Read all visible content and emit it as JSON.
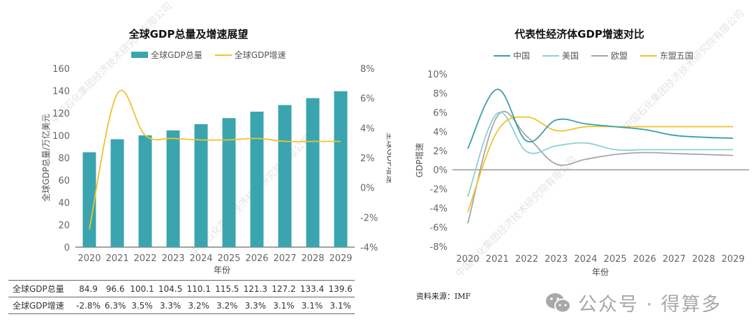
{
  "watermark_text": "中国石化集团经济技术研究院有限公司",
  "source_label": "资料来源：IMF",
  "wechat_badge": {
    "icon": "wechat-icon",
    "text": "公众号 · 得算多"
  },
  "left_table": {
    "rows": [
      {
        "label": "全球GDP总量",
        "values": [
          "84.9",
          "96.6",
          "100.1",
          "104.5",
          "110.1",
          "115.5",
          "121.3",
          "127.2",
          "133.4",
          "139.6"
        ]
      },
      {
        "label": "全球GDP增速",
        "values": [
          "-2.8%",
          "6.3%",
          "3.5%",
          "3.3%",
          "3.2%",
          "3.2%",
          "3.3%",
          "3.1%",
          "3.1%",
          "3.1%"
        ]
      }
    ]
  },
  "chart_data": [
    {
      "type": "bar",
      "title": "全球GDP总量及增速展望",
      "categories": [
        "2020",
        "2021",
        "2022",
        "2023",
        "2024",
        "2025",
        "2026",
        "2027",
        "2028",
        "2029"
      ],
      "xlabel": "年份",
      "ylabel": "全球GDP总量/万亿美元",
      "y2label": "全球GDP增速",
      "ylim": [
        0,
        160
      ],
      "yticks": [
        0,
        20,
        40,
        60,
        80,
        100,
        120,
        140,
        160
      ],
      "y2lim": [
        -4,
        8
      ],
      "y2ticks": [
        "-4%",
        "-2%",
        "0%",
        "2%",
        "4%",
        "6%",
        "8%"
      ],
      "legend_position": "top-center",
      "grid": false,
      "colors": {
        "bar": "#3aa5ae",
        "line": "#f0c22e"
      },
      "series": [
        {
          "name": "全球GDP总量",
          "kind": "bar",
          "axis": "left",
          "values": [
            84.9,
            96.6,
            100.1,
            104.5,
            110.1,
            115.5,
            121.3,
            127.2,
            133.4,
            139.6
          ]
        },
        {
          "name": "全球GDP增速",
          "kind": "line",
          "axis": "right",
          "values": [
            -2.8,
            6.3,
            3.5,
            3.3,
            3.2,
            3.2,
            3.3,
            3.1,
            3.1,
            3.1
          ]
        }
      ]
    },
    {
      "type": "line",
      "title": "代表性经济体GDP增速对比",
      "categories": [
        "2020",
        "2021",
        "2022",
        "2023",
        "2024",
        "2025",
        "2026",
        "2027",
        "2028",
        "2029"
      ],
      "xlabel": "年份",
      "ylabel": "GDP增速",
      "ylim": [
        -8,
        10
      ],
      "yticks": [
        "-8%",
        "-6%",
        "-4%",
        "-2%",
        "0%",
        "2%",
        "4%",
        "6%",
        "8%",
        "10%"
      ],
      "legend_position": "top-center",
      "grid": false,
      "series": [
        {
          "name": "中国",
          "color": "#3a9ea6",
          "values": [
            2.2,
            8.4,
            3.0,
            5.2,
            4.8,
            4.5,
            4.2,
            3.6,
            3.4,
            3.3
          ]
        },
        {
          "name": "美国",
          "color": "#8fd0d0",
          "values": [
            -2.8,
            5.9,
            1.9,
            2.5,
            2.8,
            2.1,
            2.1,
            2.1,
            2.1,
            2.1
          ]
        },
        {
          "name": "欧盟",
          "color": "#a6a6a6",
          "values": [
            -5.6,
            5.6,
            3.5,
            0.6,
            1.1,
            1.6,
            1.8,
            1.7,
            1.6,
            1.5
          ]
        },
        {
          "name": "东盟五国",
          "color": "#f0c22e",
          "values": [
            -4.4,
            4.0,
            5.5,
            4.1,
            4.5,
            4.5,
            4.5,
            4.5,
            4.5,
            4.5
          ]
        }
      ]
    }
  ]
}
